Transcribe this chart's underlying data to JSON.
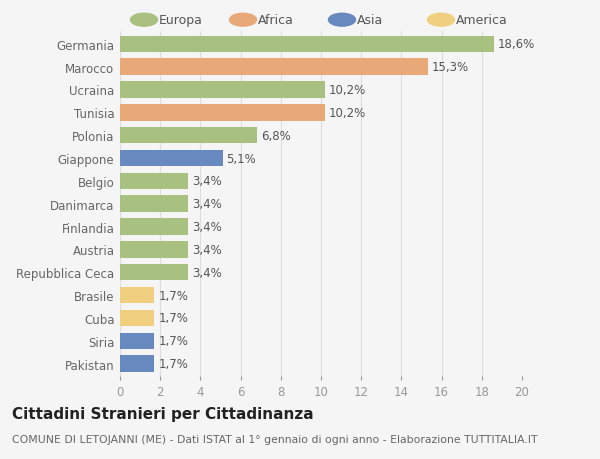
{
  "categories": [
    "Germania",
    "Marocco",
    "Ucraina",
    "Tunisia",
    "Polonia",
    "Giappone",
    "Belgio",
    "Danimarca",
    "Finlandia",
    "Austria",
    "Repubblica Ceca",
    "Brasile",
    "Cuba",
    "Siria",
    "Pakistan"
  ],
  "values": [
    18.6,
    15.3,
    10.2,
    10.2,
    6.8,
    5.1,
    3.4,
    3.4,
    3.4,
    3.4,
    3.4,
    1.7,
    1.7,
    1.7,
    1.7
  ],
  "labels": [
    "18,6%",
    "15,3%",
    "10,2%",
    "10,2%",
    "6,8%",
    "5,1%",
    "3,4%",
    "3,4%",
    "3,4%",
    "3,4%",
    "3,4%",
    "1,7%",
    "1,7%",
    "1,7%",
    "1,7%"
  ],
  "colors": [
    "#a8c080",
    "#e8a878",
    "#a8c080",
    "#e8a878",
    "#a8c080",
    "#6888c0",
    "#a8c080",
    "#a8c080",
    "#a8c080",
    "#a8c080",
    "#a8c080",
    "#f0d080",
    "#f0d080",
    "#6888c0",
    "#6888c0"
  ],
  "legend_labels": [
    "Europa",
    "Africa",
    "Asia",
    "America"
  ],
  "legend_colors": [
    "#a8c080",
    "#e8a878",
    "#6888c0",
    "#f0d080"
  ],
  "title": "Cittadini Stranieri per Cittadinanza",
  "subtitle": "COMUNE DI LETOJANNI (ME) - Dati ISTAT al 1° gennaio di ogni anno - Elaborazione TUTTITALIA.IT",
  "xlim": [
    0,
    20
  ],
  "xticks": [
    0,
    2,
    4,
    6,
    8,
    10,
    12,
    14,
    16,
    18,
    20
  ],
  "bg_color": "#f5f5f5",
  "grid_color": "#dddddd",
  "bar_height": 0.72,
  "label_fontsize": 8.5,
  "tick_fontsize": 8.5,
  "title_fontsize": 11,
  "subtitle_fontsize": 7.8
}
